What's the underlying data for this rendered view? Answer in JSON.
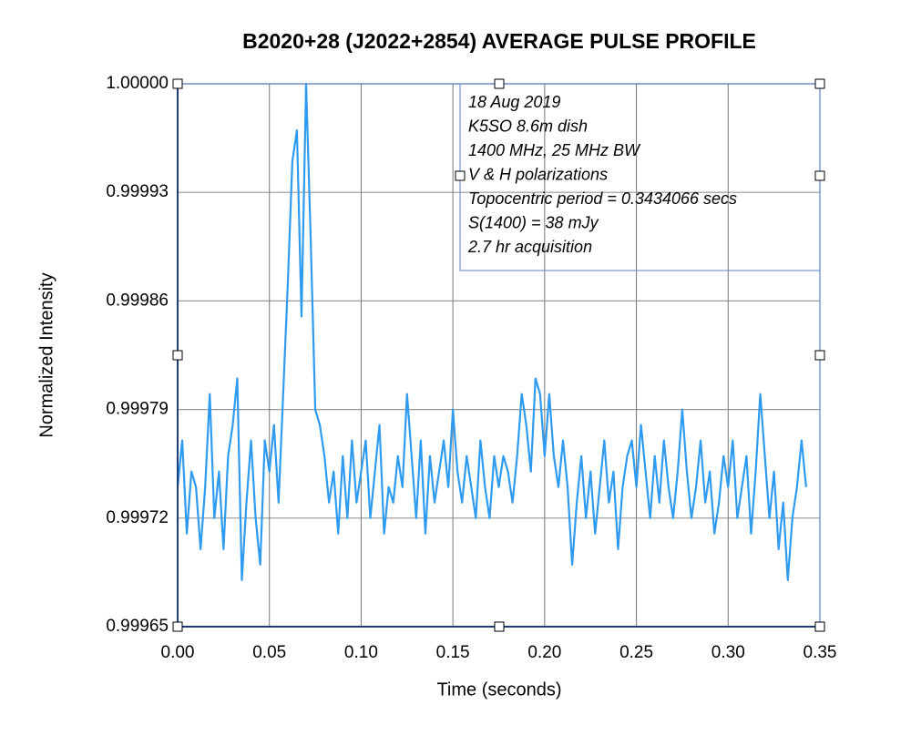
{
  "chart_data": {
    "type": "line",
    "title": "B2020+28 (J2022+2854) AVERAGE PULSE PROFILE",
    "xlabel": "Time (seconds)",
    "ylabel": "Normalized Intensity",
    "annotation": [
      "18 Aug 2019",
      "K5SO 8.6m dish",
      "1400 MHz, 25 MHz BW",
      "V & H polarizations",
      "Topocentric period = 0.3434066 secs",
      "S(1400) = 38 mJy",
      "2.7 hr acquisition"
    ],
    "xlim": [
      0,
      0.35
    ],
    "ylim": [
      0.99965,
      1
    ],
    "xticks": [
      {
        "value": 0,
        "label": "0.00"
      },
      0.05,
      {
        "value": 0.1,
        "label": "0.10"
      },
      0.15,
      {
        "value": 0.2,
        "label": "0.20"
      },
      0.25,
      {
        "value": 0.3,
        "label": "0.30"
      },
      0.35
    ],
    "yticks": [
      0.99965,
      0.99972,
      0.99979,
      0.99986,
      0.99993,
      {
        "value": 1,
        "label": "1.00000"
      }
    ],
    "grid": true,
    "color": "#2e9bf0",
    "x": [
      0,
      0.0025,
      0.005,
      0.0075,
      0.01,
      0.0125,
      0.015,
      0.0175,
      0.02,
      0.0225,
      0.025,
      0.0275,
      0.03,
      0.0325,
      0.035,
      0.0375,
      0.04,
      0.0425,
      0.045,
      0.0475,
      0.05,
      0.0525,
      0.055,
      0.0575,
      0.06,
      0.0625,
      0.065,
      0.0675,
      0.07,
      0.0725,
      0.075,
      0.0775,
      0.08,
      0.0825,
      0.085,
      0.0875,
      0.09,
      0.0925,
      0.095,
      0.0975,
      0.1,
      0.1025,
      0.105,
      0.1075,
      0.11,
      0.1125,
      0.115,
      0.1175,
      0.12,
      0.1225,
      0.125,
      0.1275,
      0.13,
      0.1325,
      0.135,
      0.1375,
      0.14,
      0.1425,
      0.145,
      0.1475,
      0.15,
      0.1525,
      0.155,
      0.1575,
      0.16,
      0.1625,
      0.165,
      0.1675,
      0.17,
      0.1725,
      0.175,
      0.1775,
      0.18,
      0.1825,
      0.185,
      0.1875,
      0.19,
      0.1925,
      0.195,
      0.1975,
      0.2,
      0.2025,
      0.205,
      0.2075,
      0.21,
      0.2125,
      0.215,
      0.2175,
      0.22,
      0.2225,
      0.225,
      0.2275,
      0.23,
      0.2325,
      0.235,
      0.2375,
      0.24,
      0.2425,
      0.245,
      0.2475,
      0.25,
      0.2525,
      0.255,
      0.2575,
      0.26,
      0.2625,
      0.265,
      0.2675,
      0.27,
      0.2725,
      0.275,
      0.2775,
      0.28,
      0.2825,
      0.285,
      0.2875,
      0.29,
      0.2925,
      0.295,
      0.2975,
      0.3,
      0.3025,
      0.305,
      0.3075,
      0.31,
      0.3125,
      0.315,
      0.3175,
      0.32,
      0.3225,
      0.325,
      0.3275,
      0.33,
      0.3325,
      0.335,
      0.3375,
      0.34,
      0.3425
    ],
    "values": [
      0.99974,
      0.99977,
      0.99971,
      0.99975,
      0.99974,
      0.9997,
      0.99974,
      0.9998,
      0.99972,
      0.99975,
      0.9997,
      0.99976,
      0.99978,
      0.99981,
      0.99968,
      0.99973,
      0.99977,
      0.99972,
      0.99969,
      0.99977,
      0.99975,
      0.99978,
      0.99973,
      0.9998,
      0.99987,
      0.99995,
      0.99997,
      0.99985,
      1,
      0.9999,
      0.99979,
      0.99978,
      0.99976,
      0.99973,
      0.99975,
      0.99971,
      0.99976,
      0.99972,
      0.99977,
      0.99973,
      0.99975,
      0.99977,
      0.99972,
      0.99975,
      0.99978,
      0.99971,
      0.99974,
      0.99973,
      0.99976,
      0.99974,
      0.9998,
      0.99976,
      0.99972,
      0.99977,
      0.99971,
      0.99976,
      0.99973,
      0.99975,
      0.99977,
      0.99974,
      0.99979,
      0.99975,
      0.99973,
      0.99976,
      0.99974,
      0.99972,
      0.99977,
      0.99974,
      0.99972,
      0.99976,
      0.99974,
      0.99976,
      0.99975,
      0.99973,
      0.99976,
      0.9998,
      0.99978,
      0.99975,
      0.99981,
      0.9998,
      0.99976,
      0.9998,
      0.99976,
      0.99974,
      0.99977,
      0.99974,
      0.99969,
      0.99973,
      0.99976,
      0.99972,
      0.99975,
      0.99971,
      0.99974,
      0.99977,
      0.99973,
      0.99975,
      0.9997,
      0.99974,
      0.99976,
      0.99977,
      0.99974,
      0.99978,
      0.99975,
      0.99972,
      0.99976,
      0.99973,
      0.99977,
      0.99974,
      0.99972,
      0.99975,
      0.99979,
      0.99975,
      0.99972,
      0.99974,
      0.99977,
      0.99973,
      0.99975,
      0.99971,
      0.99973,
      0.99976,
      0.99974,
      0.99977,
      0.99972,
      0.99974,
      0.99976,
      0.99971,
      0.99975,
      0.9998,
      0.99976,
      0.99972,
      0.99975,
      0.9997,
      0.99973,
      0.99968,
      0.99972,
      0.99974,
      0.99977,
      0.99974
    ]
  }
}
